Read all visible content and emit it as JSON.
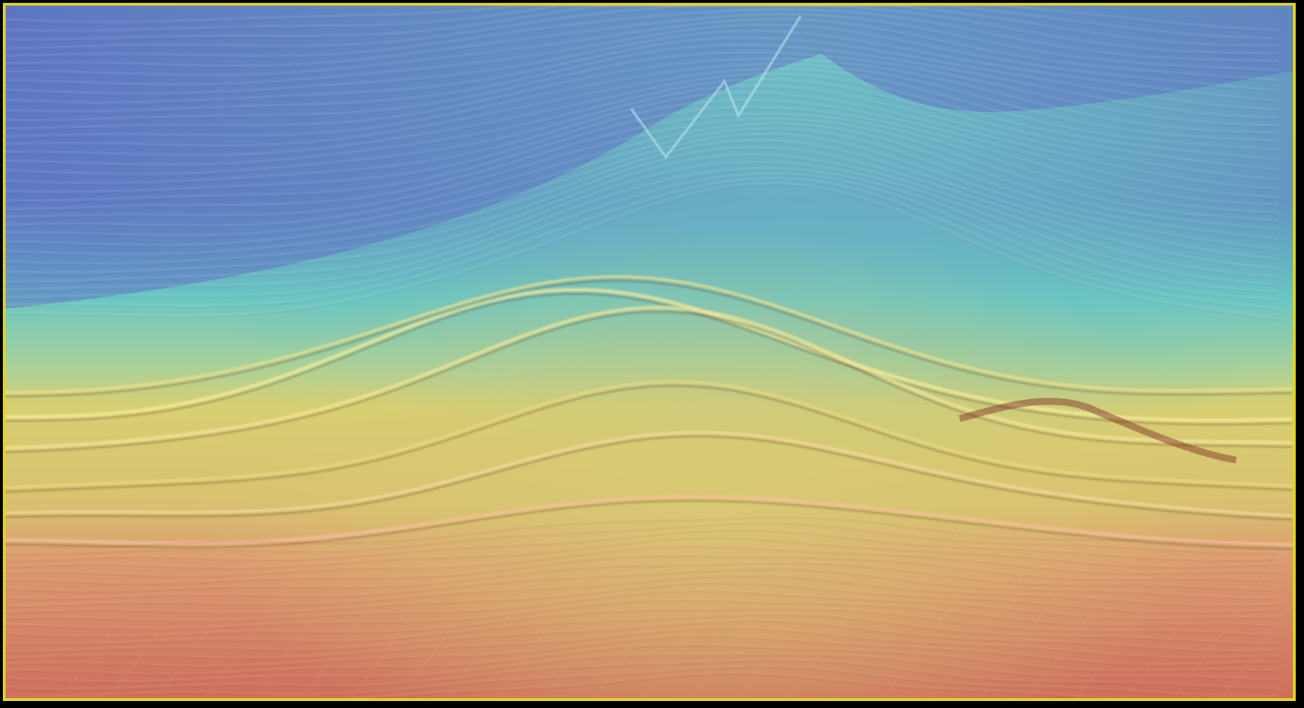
{
  "image": {
    "kind": "seismic velocity section",
    "colors": {
      "frame_border": "#e4d81a",
      "background": "#000000",
      "shallow_blue": "#5d77c4",
      "mid_cyan": "#6cc7c4",
      "mid_yellow": "#d6cf72",
      "deep_orange": "#dd9f6f",
      "deep_red": "#cd6d5d"
    }
  }
}
